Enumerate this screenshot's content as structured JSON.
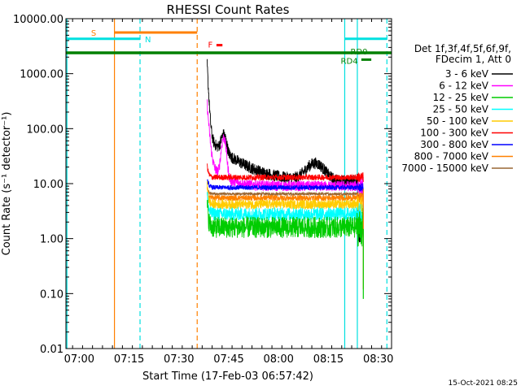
{
  "chart_data": {
    "type": "line",
    "title": "RHESSI Count Rates",
    "xlabel": "Start Time (17-Feb-03 06:57:42)",
    "ylabel": "Count Rate (s⁻¹ detector⁻¹)",
    "y_scale": "log",
    "ylim": [
      0.01,
      10000
    ],
    "y_ticks": [
      "0.01",
      "0.10",
      "1.00",
      "10.00",
      "100.00",
      "1000.00",
      "10000.00"
    ],
    "xlim_minutes": [
      -4,
      94
    ],
    "x_ticks": [
      "07:00",
      "07:15",
      "07:30",
      "07:45",
      "08:00",
      "08:15",
      "08:30"
    ],
    "legend": {
      "header_line1": "Det 1f,3f,4f,5f,6f,9f,",
      "header_line2": "FDecim 1, Att 0",
      "placement": "right"
    },
    "series": [
      {
        "name": "3 - 6 keV",
        "color": "#000000",
        "base": 11,
        "noise": 0.25
      },
      {
        "name": "6 - 12 keV",
        "color": "#ff00ff",
        "base": 9,
        "noise": 0.22
      },
      {
        "name": "12 - 25 keV",
        "color": "#00cc00",
        "base": 1.6,
        "noise": 0.45
      },
      {
        "name": "25 - 50 keV",
        "color": "#00ffff",
        "base": 2.8,
        "noise": 0.28
      },
      {
        "name": "50 - 100 keV",
        "color": "#ffcc00",
        "base": 4.2,
        "noise": 0.2
      },
      {
        "name": "100 - 300 keV",
        "color": "#ff0000",
        "base": 13,
        "noise": 0.12
      },
      {
        "name": "300 - 800 keV",
        "color": "#0000ff",
        "base": 8.5,
        "noise": 0.1
      },
      {
        "name": "800 - 7000 keV",
        "color": "#ff8000",
        "base": 5.5,
        "noise": 0.12
      },
      {
        "name": "7000 - 15000 keV",
        "color": "#996633",
        "base": 6.5,
        "noise": 0.06
      }
    ],
    "annotations": {
      "labels": [
        {
          "text": "S",
          "color": "#ff8000"
        },
        {
          "text": "N",
          "color": "#00e0e0"
        },
        {
          "text": "F",
          "color": "#ff0000"
        },
        {
          "text": "RD0",
          "color": "#008000"
        },
        {
          "text": "RD4",
          "color": "#008000"
        }
      ],
      "saa_start_min": 10.6,
      "saa_label_min": 6.5,
      "flare_start_min": 38.5,
      "night_end_min": 18.3,
      "night_start_min": 79.9,
      "night_end2_min": 92.6,
      "data_gap_min": 83.7,
      "data_end_min": 85.5
    },
    "timestamp": "15-Oct-2021 08:25"
  }
}
